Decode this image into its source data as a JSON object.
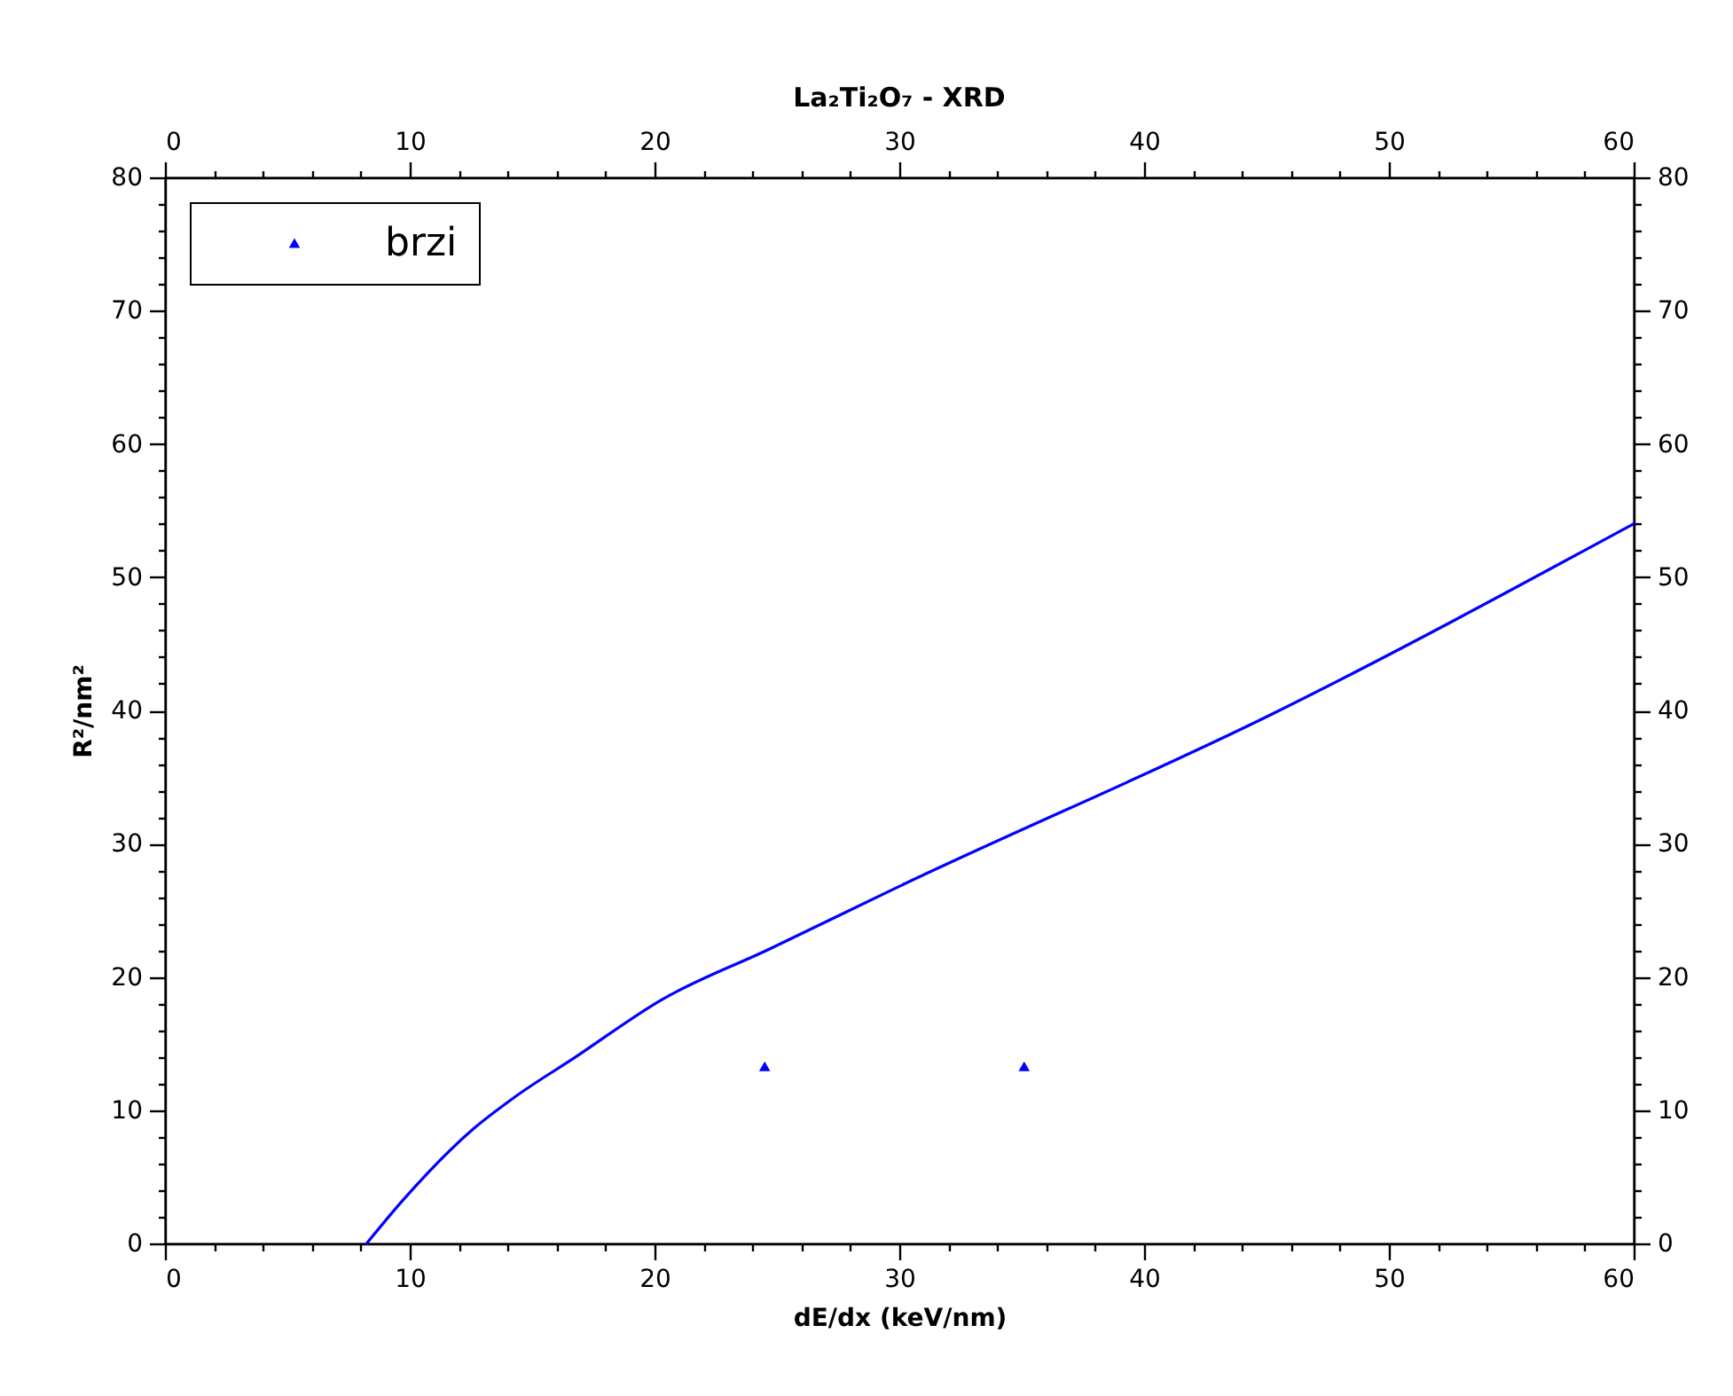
{
  "chart_data": {
    "type": "line",
    "title": "La₂Ti₂O₇ - XRD",
    "xlabel": "dE/dx (keV/nm)",
    "ylabel": "R²/nm²",
    "xlim": [
      0,
      60
    ],
    "xticks": [
      0,
      {
        "value": 2,
        "label": null
      },
      {
        "value": 4,
        "label": null
      },
      {
        "value": 6,
        "label": null
      },
      {
        "value": 8,
        "label": null
      },
      10,
      {
        "value": 12,
        "label": null
      },
      {
        "value": 14,
        "label": null
      },
      {
        "value": 16,
        "label": null
      },
      {
        "value": 18,
        "label": null
      },
      20,
      {
        "value": 22,
        "label": null
      },
      {
        "value": 24,
        "label": null
      },
      {
        "value": 26,
        "label": null
      },
      {
        "value": 28,
        "label": null
      },
      30,
      {
        "value": 32,
        "label": null
      },
      {
        "value": 34,
        "label": null
      },
      {
        "value": 36,
        "label": null
      },
      {
        "value": 38,
        "label": null
      },
      40,
      {
        "value": 42,
        "label": null
      },
      {
        "value": 44,
        "label": null
      },
      {
        "value": 46,
        "label": null
      },
      {
        "value": 48,
        "label": null
      },
      50,
      {
        "value": 52,
        "label": null
      },
      {
        "value": 54,
        "label": null
      },
      {
        "value": 56,
        "label": null
      },
      {
        "value": 58,
        "label": null
      },
      60
    ],
    "x2lim": [
      0,
      60
    ],
    "x2ticks": [
      0,
      {
        "value": 2,
        "label": null
      },
      {
        "value": 4,
        "label": null
      },
      {
        "value": 6,
        "label": null
      },
      {
        "value": 8,
        "label": null
      },
      10,
      {
        "value": 12,
        "label": null
      },
      {
        "value": 14,
        "label": null
      },
      {
        "value": 16,
        "label": null
      },
      {
        "value": 18,
        "label": null
      },
      20,
      {
        "value": 22,
        "label": null
      },
      {
        "value": 24,
        "label": null
      },
      {
        "value": 26,
        "label": null
      },
      {
        "value": 28,
        "label": null
      },
      30,
      {
        "value": 32,
        "label": null
      },
      {
        "value": 34,
        "label": null
      },
      {
        "value": 36,
        "label": null
      },
      {
        "value": 38,
        "label": null
      },
      40,
      {
        "value": 42,
        "label": null
      },
      {
        "value": 44,
        "label": null
      },
      {
        "value": 46,
        "label": null
      },
      {
        "value": 48,
        "label": null
      },
      50,
      {
        "value": 52,
        "label": null
      },
      {
        "value": 54,
        "label": null
      },
      {
        "value": 56,
        "label": null
      },
      {
        "value": 58,
        "label": null
      },
      60
    ],
    "ylim": [
      0,
      80
    ],
    "yticks": [
      0,
      {
        "value": 2,
        "label": null
      },
      {
        "value": 4,
        "label": null
      },
      {
        "value": 6,
        "label": null
      },
      {
        "value": 8,
        "label": null
      },
      10,
      {
        "value": 12,
        "label": null
      },
      {
        "value": 14,
        "label": null
      },
      {
        "value": 16,
        "label": null
      },
      {
        "value": 18,
        "label": null
      },
      20,
      {
        "value": 22,
        "label": null
      },
      {
        "value": 24,
        "label": null
      },
      {
        "value": 26,
        "label": null
      },
      {
        "value": 28,
        "label": null
      },
      30,
      {
        "value": 32,
        "label": null
      },
      {
        "value": 34,
        "label": null
      },
      {
        "value": 36,
        "label": null
      },
      {
        "value": 38,
        "label": null
      },
      40,
      {
        "value": 42,
        "label": null
      },
      {
        "value": 44,
        "label": null
      },
      {
        "value": 46,
        "label": null
      },
      {
        "value": 48,
        "label": null
      },
      50,
      {
        "value": 52,
        "label": null
      },
      {
        "value": 54,
        "label": null
      },
      {
        "value": 56,
        "label": null
      },
      {
        "value": 58,
        "label": null
      },
      60,
      {
        "value": 62,
        "label": null
      },
      {
        "value": 64,
        "label": null
      },
      {
        "value": 66,
        "label": null
      },
      {
        "value": 68,
        "label": null
      },
      70,
      {
        "value": 72,
        "label": null
      },
      {
        "value": 74,
        "label": null
      },
      {
        "value": 76,
        "label": null
      },
      {
        "value": 78,
        "label": null
      },
      80
    ],
    "y2lim": [
      0,
      80
    ],
    "y2ticks": [
      0,
      {
        "value": 2,
        "label": null
      },
      {
        "value": 4,
        "label": null
      },
      {
        "value": 6,
        "label": null
      },
      {
        "value": 8,
        "label": null
      },
      10,
      {
        "value": 12,
        "label": null
      },
      {
        "value": 14,
        "label": null
      },
      {
        "value": 16,
        "label": null
      },
      {
        "value": 18,
        "label": null
      },
      20,
      {
        "value": 22,
        "label": null
      },
      {
        "value": 24,
        "label": null
      },
      {
        "value": 26,
        "label": null
      },
      {
        "value": 28,
        "label": null
      },
      30,
      {
        "value": 32,
        "label": null
      },
      {
        "value": 34,
        "label": null
      },
      {
        "value": 36,
        "label": null
      },
      {
        "value": 38,
        "label": null
      },
      40,
      {
        "value": 42,
        "label": null
      },
      {
        "value": 44,
        "label": null
      },
      {
        "value": 46,
        "label": null
      },
      {
        "value": 48,
        "label": null
      },
      50,
      {
        "value": 52,
        "label": null
      },
      {
        "value": 54,
        "label": null
      },
      {
        "value": 56,
        "label": null
      },
      {
        "value": 58,
        "label": null
      },
      60,
      {
        "value": 62,
        "label": null
      },
      {
        "value": 64,
        "label": null
      },
      {
        "value": 66,
        "label": null
      },
      {
        "value": 68,
        "label": null
      },
      70,
      {
        "value": 72,
        "label": null
      },
      {
        "value": 74,
        "label": null
      },
      {
        "value": 76,
        "label": null
      },
      {
        "value": 78,
        "label": null
      },
      80
    ],
    "legend": "top left",
    "series": [
      {
        "type": "line",
        "color": "#0000ff",
        "line_style": "solid",
        "x": [
          8.24,
          9.7,
          12.6,
          14.3,
          16.7,
          20.3,
          24.7,
          30,
          45.2,
          60
        ],
        "values": [
          0,
          3.2,
          8.6,
          11,
          13.9,
          18.3,
          22.1,
          26.8,
          39.7,
          54
        ]
      },
      {
        "type": "scatter",
        "name": "brzi",
        "color": "#0000ff",
        "marker": "triangle",
        "x": [
          24.5,
          35.1
        ],
        "values": [
          13.3,
          13.3
        ]
      }
    ]
  }
}
